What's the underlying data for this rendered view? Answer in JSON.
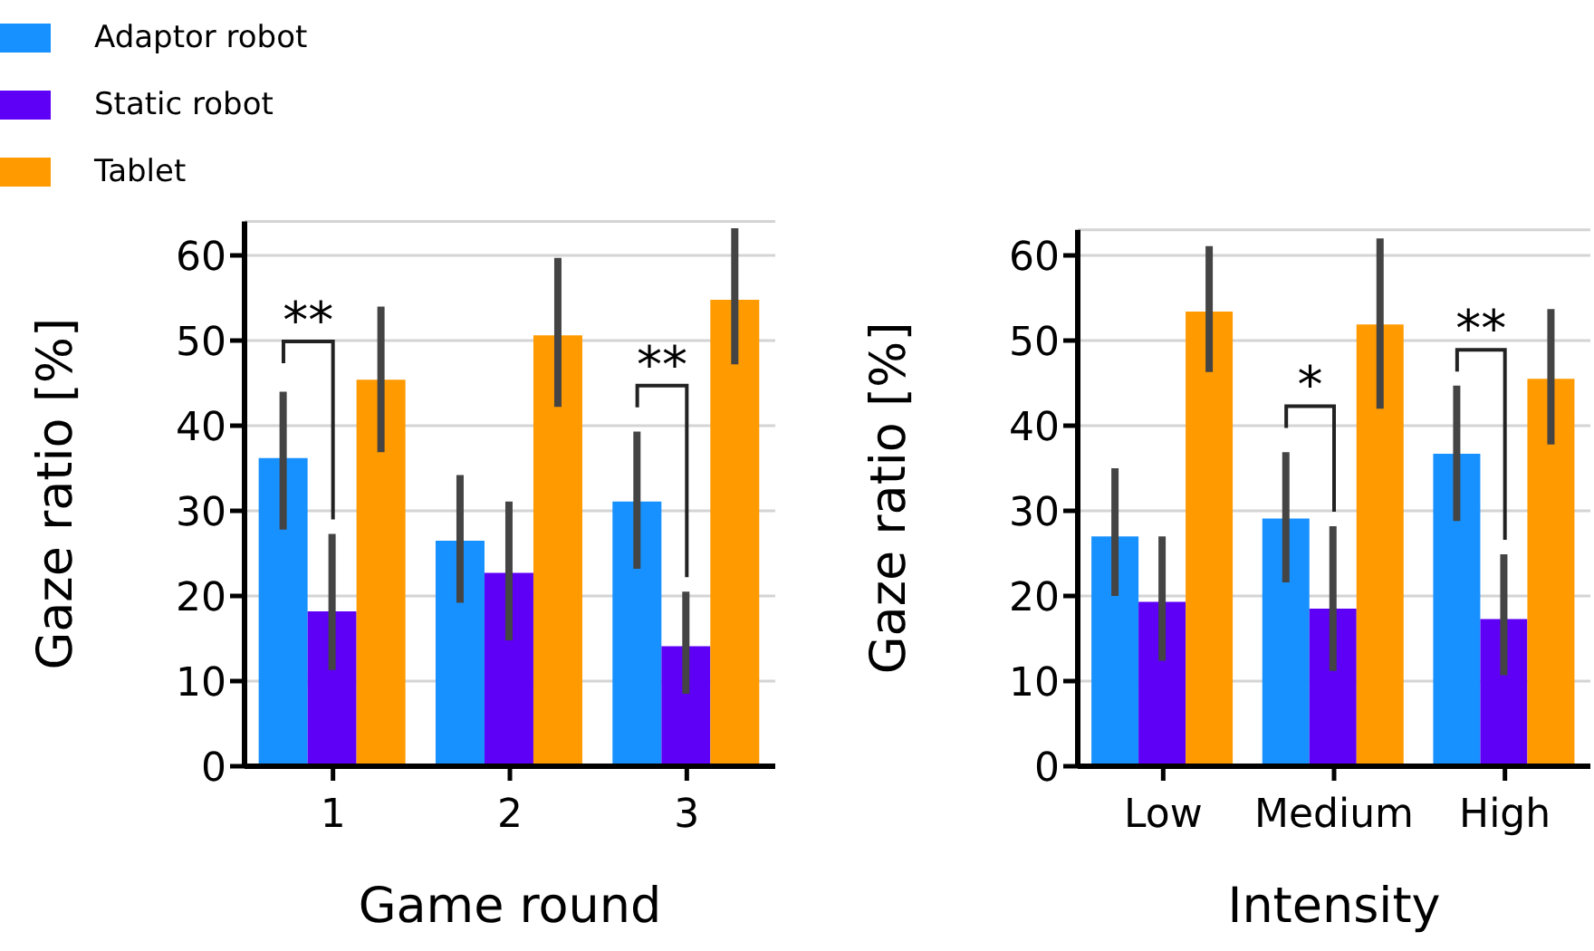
{
  "chart_data": [
    {
      "type": "bar",
      "xlabel": "Game round",
      "ylabel": "Gaze ratio [%]",
      "categories": [
        "1",
        "2",
        "3"
      ],
      "series": [
        {
          "name": "Adaptor robot",
          "color": "#1791ff",
          "values": [
            36.2,
            26.5,
            31.1
          ],
          "errors": [
            [
              27.8,
              44.0
            ],
            [
              19.2,
              34.2
            ],
            [
              23.2,
              39.3
            ]
          ]
        },
        {
          "name": "Static robot",
          "color": "#5d00f5",
          "values": [
            18.2,
            22.7,
            14.1
          ],
          "errors": [
            [
              11.3,
              27.3
            ],
            [
              14.8,
              31.1
            ],
            [
              8.5,
              20.5
            ]
          ]
        },
        {
          "name": "Tablet",
          "color": "#ff9a00",
          "values": [
            45.4,
            50.6,
            54.8
          ],
          "errors": [
            [
              36.9,
              54.0
            ],
            [
              42.2,
              59.7
            ],
            [
              47.2,
              63.2
            ]
          ]
        }
      ],
      "ylim": [
        0,
        64
      ],
      "yticks": [
        0,
        10,
        20,
        30,
        40,
        50,
        60
      ],
      "grid": "y",
      "legend": "top left",
      "annotations": [
        "**",
        "**"
      ]
    },
    {
      "type": "bar",
      "xlabel": "Intensity",
      "ylabel": "Gaze ratio [%]",
      "categories": [
        "Low",
        "Medium",
        "High"
      ],
      "series": [
        {
          "color": "#1791ff",
          "values": [
            27.0,
            29.1,
            36.7
          ],
          "errors": [
            [
              20.0,
              35.0
            ],
            [
              21.6,
              36.9
            ],
            [
              28.8,
              44.7
            ]
          ]
        },
        {
          "color": "#5d00f5",
          "values": [
            19.3,
            18.5,
            17.3
          ],
          "errors": [
            [
              12.4,
              27.0
            ],
            [
              11.2,
              28.2
            ],
            [
              10.7,
              24.9
            ]
          ]
        },
        {
          "color": "#ff9a00",
          "values": [
            53.4,
            51.9,
            45.5
          ],
          "errors": [
            [
              46.3,
              61.1
            ],
            [
              42.0,
              62.0
            ],
            [
              37.8,
              53.7
            ]
          ]
        }
      ],
      "ylim": [
        0,
        63
      ],
      "yticks": [
        0,
        10,
        20,
        30,
        40,
        50,
        60
      ],
      "grid": "y",
      "annotations": [
        "*",
        "**"
      ]
    }
  ]
}
